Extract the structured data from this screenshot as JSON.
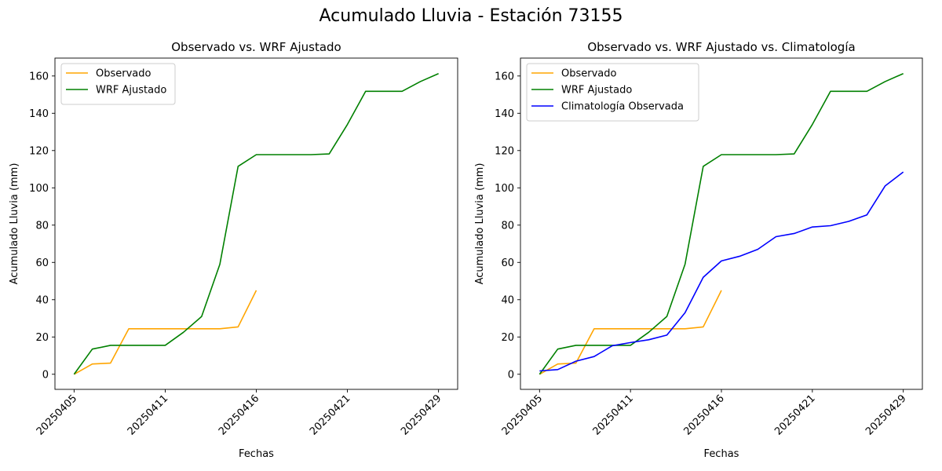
{
  "figure": {
    "suptitle": "Acumulado Lluvia - Estación 73155"
  },
  "chart_data": [
    {
      "type": "line",
      "title": "Observado vs. WRF Ajustado",
      "xlabel": "Fechas",
      "ylabel": "Acumulado Lluvia (mm)",
      "x_tick_labels": [
        "20250405",
        "20250411",
        "20250416",
        "20250421",
        "20250429"
      ],
      "y_ticks": [
        0,
        20,
        40,
        60,
        80,
        100,
        120,
        140,
        160
      ],
      "ylim": [
        -8.1,
        169.6
      ],
      "legend_position": "upper-left",
      "series": [
        {
          "name": "Observado",
          "color": "#ffa500",
          "x": [
            0,
            1,
            2,
            3,
            4,
            5,
            6,
            7,
            8,
            9,
            10
          ],
          "y": [
            0,
            5.5,
            6,
            24.4,
            24.4,
            24.4,
            24.4,
            24.4,
            24.4,
            25.4,
            45
          ]
        },
        {
          "name": "WRF Ajustado",
          "color": "#008000",
          "x": [
            0,
            1,
            2,
            3,
            4,
            5,
            6,
            7,
            8,
            9,
            10,
            11,
            12,
            13,
            14,
            15,
            16,
            17,
            18,
            19,
            20
          ],
          "y": [
            0,
            13.5,
            15.5,
            15.5,
            15.5,
            15.5,
            22.5,
            31,
            59,
            111.5,
            117.8,
            117.8,
            117.8,
            117.8,
            118.2,
            134,
            151.8,
            151.8,
            151.8,
            157,
            161.3
          ]
        }
      ]
    },
    {
      "type": "line",
      "title": "Observado vs. WRF Ajustado vs. Climatología",
      "xlabel": "Fechas",
      "ylabel": "Acumulado Lluvia (mm)",
      "x_tick_labels": [
        "20250405",
        "20250411",
        "20250416",
        "20250421",
        "20250429"
      ],
      "y_ticks": [
        0,
        20,
        40,
        60,
        80,
        100,
        120,
        140,
        160
      ],
      "ylim": [
        -8.1,
        169.6
      ],
      "legend_position": "upper-left",
      "series": [
        {
          "name": "Observado",
          "color": "#ffa500",
          "x": [
            0,
            1,
            2,
            3,
            4,
            5,
            6,
            7,
            8,
            9,
            10
          ],
          "y": [
            0,
            5.5,
            6,
            24.4,
            24.4,
            24.4,
            24.4,
            24.4,
            24.4,
            25.4,
            45
          ]
        },
        {
          "name": "WRF Ajustado",
          "color": "#008000",
          "x": [
            0,
            1,
            2,
            3,
            4,
            5,
            6,
            7,
            8,
            9,
            10,
            11,
            12,
            13,
            14,
            15,
            16,
            17,
            18,
            19,
            20
          ],
          "y": [
            0,
            13.5,
            15.5,
            15.5,
            15.5,
            15.5,
            22.5,
            31,
            59,
            111.5,
            117.8,
            117.8,
            117.8,
            117.8,
            118.2,
            134,
            151.8,
            151.8,
            151.8,
            157,
            161.3
          ]
        },
        {
          "name": "Climatología Observada",
          "color": "#0000ff",
          "x": [
            0,
            1,
            2,
            3,
            4,
            5,
            6,
            7,
            8,
            9,
            10,
            11,
            12,
            13,
            14,
            15,
            16,
            17,
            18,
            19,
            20
          ],
          "y": [
            1.8,
            2.5,
            7,
            9.5,
            15.3,
            17,
            18.5,
            21,
            33,
            52,
            60.8,
            63.3,
            67,
            73.8,
            75.5,
            79,
            79.7,
            82,
            85.5,
            101,
            108.5
          ]
        }
      ]
    }
  ]
}
